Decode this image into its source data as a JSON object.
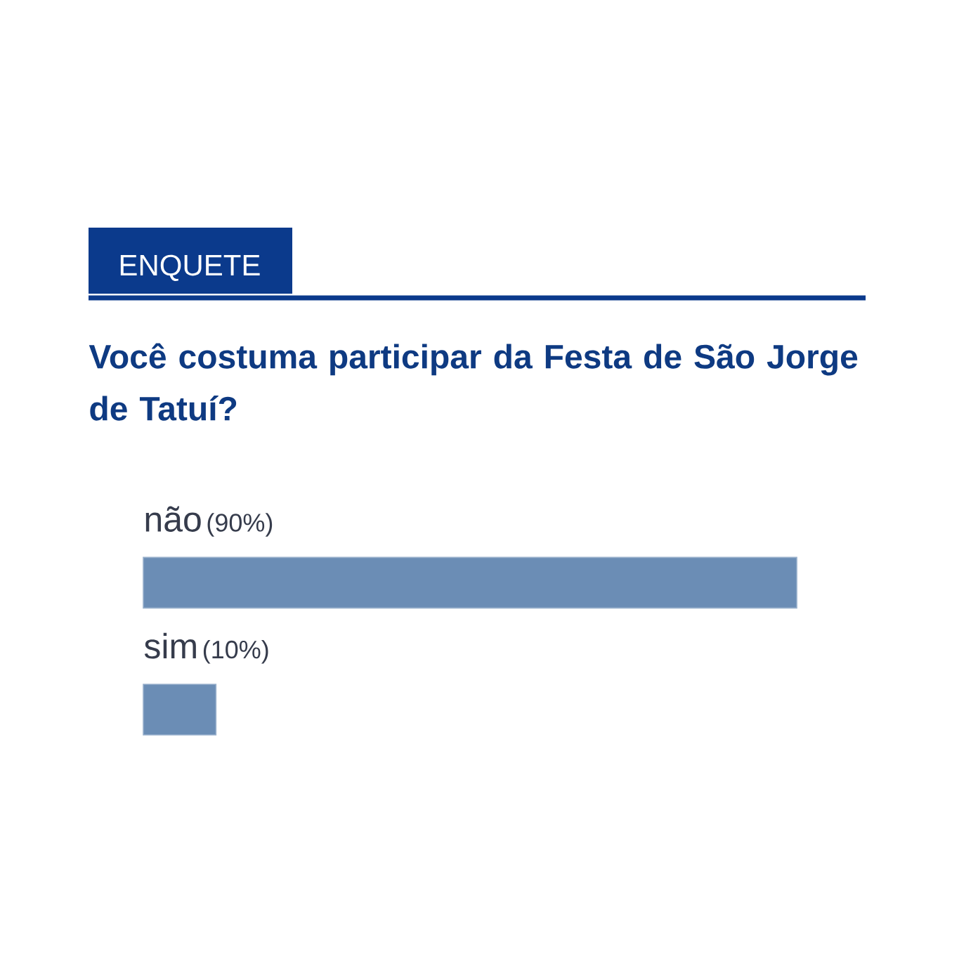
{
  "chart_data": {
    "type": "bar",
    "orientation": "horizontal",
    "title": "Você costuma participar da Festa de São Jorge de Tatuí?",
    "annotations": [
      "ENQUETE"
    ],
    "categories": [
      "não",
      "sim"
    ],
    "values": [
      90,
      10
    ],
    "value_labels": [
      "(90%)",
      "(10%)"
    ],
    "color": "#6b8db5"
  }
}
